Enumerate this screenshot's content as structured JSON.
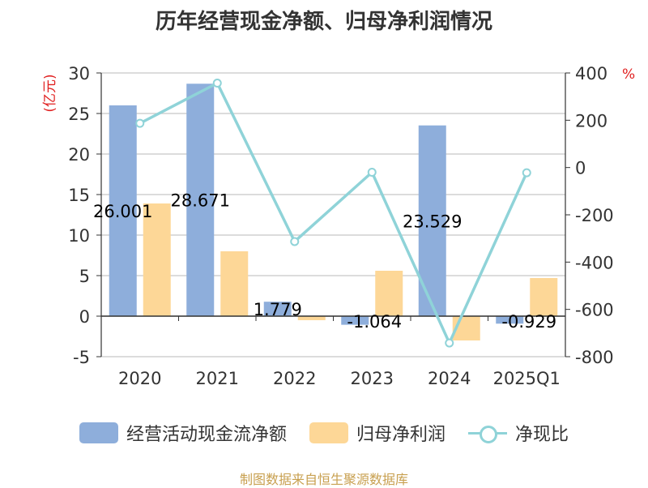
{
  "title": "历年经营现金净额、归母净利润情况",
  "source": "制图数据来自恒生聚源数据库",
  "colors": {
    "cash": "#8eaedb",
    "profit": "#fdd797",
    "ratio": "#8fd3d8",
    "axis_unit": "#e02020"
  },
  "chart_data": {
    "type": "bar",
    "categories": [
      "2020",
      "2021",
      "2022",
      "2023",
      "2024",
      "2025Q1"
    ],
    "left_axis": {
      "unit": "(亿元)",
      "min": -5,
      "max": 30,
      "ticks": [
        "-5",
        "0",
        "5",
        "10",
        "15",
        "20",
        "25",
        "30"
      ]
    },
    "right_axis": {
      "unit": "%",
      "min": -800,
      "max": 400,
      "ticks": [
        "-800",
        "-600",
        "-400",
        "-200",
        "0",
        "200",
        "400"
      ]
    },
    "series": [
      {
        "name": "经营活动现金流净额",
        "type": "bar",
        "axis": "left",
        "values": [
          26.001,
          28.671,
          1.779,
          -1.064,
          23.529,
          -0.929
        ],
        "labels": [
          "26.001",
          "28.671",
          "1.779",
          "-1.064",
          "23.529",
          "-0.929"
        ]
      },
      {
        "name": "归母净利润",
        "type": "bar",
        "axis": "left",
        "values": [
          13.9,
          8.0,
          -0.5,
          5.6,
          -3.0,
          4.7
        ]
      },
      {
        "name": "净现比",
        "type": "line",
        "axis": "right",
        "values": [
          187,
          357,
          -313,
          -20,
          -742,
          -22
        ]
      }
    ]
  },
  "legend": [
    {
      "label": "经营活动现金流净额",
      "kind": "bar",
      "color": "#8eaedb"
    },
    {
      "label": "归母净利润",
      "kind": "bar",
      "color": "#fdd797"
    },
    {
      "label": "净现比",
      "kind": "line",
      "color": "#8fd3d8"
    }
  ]
}
